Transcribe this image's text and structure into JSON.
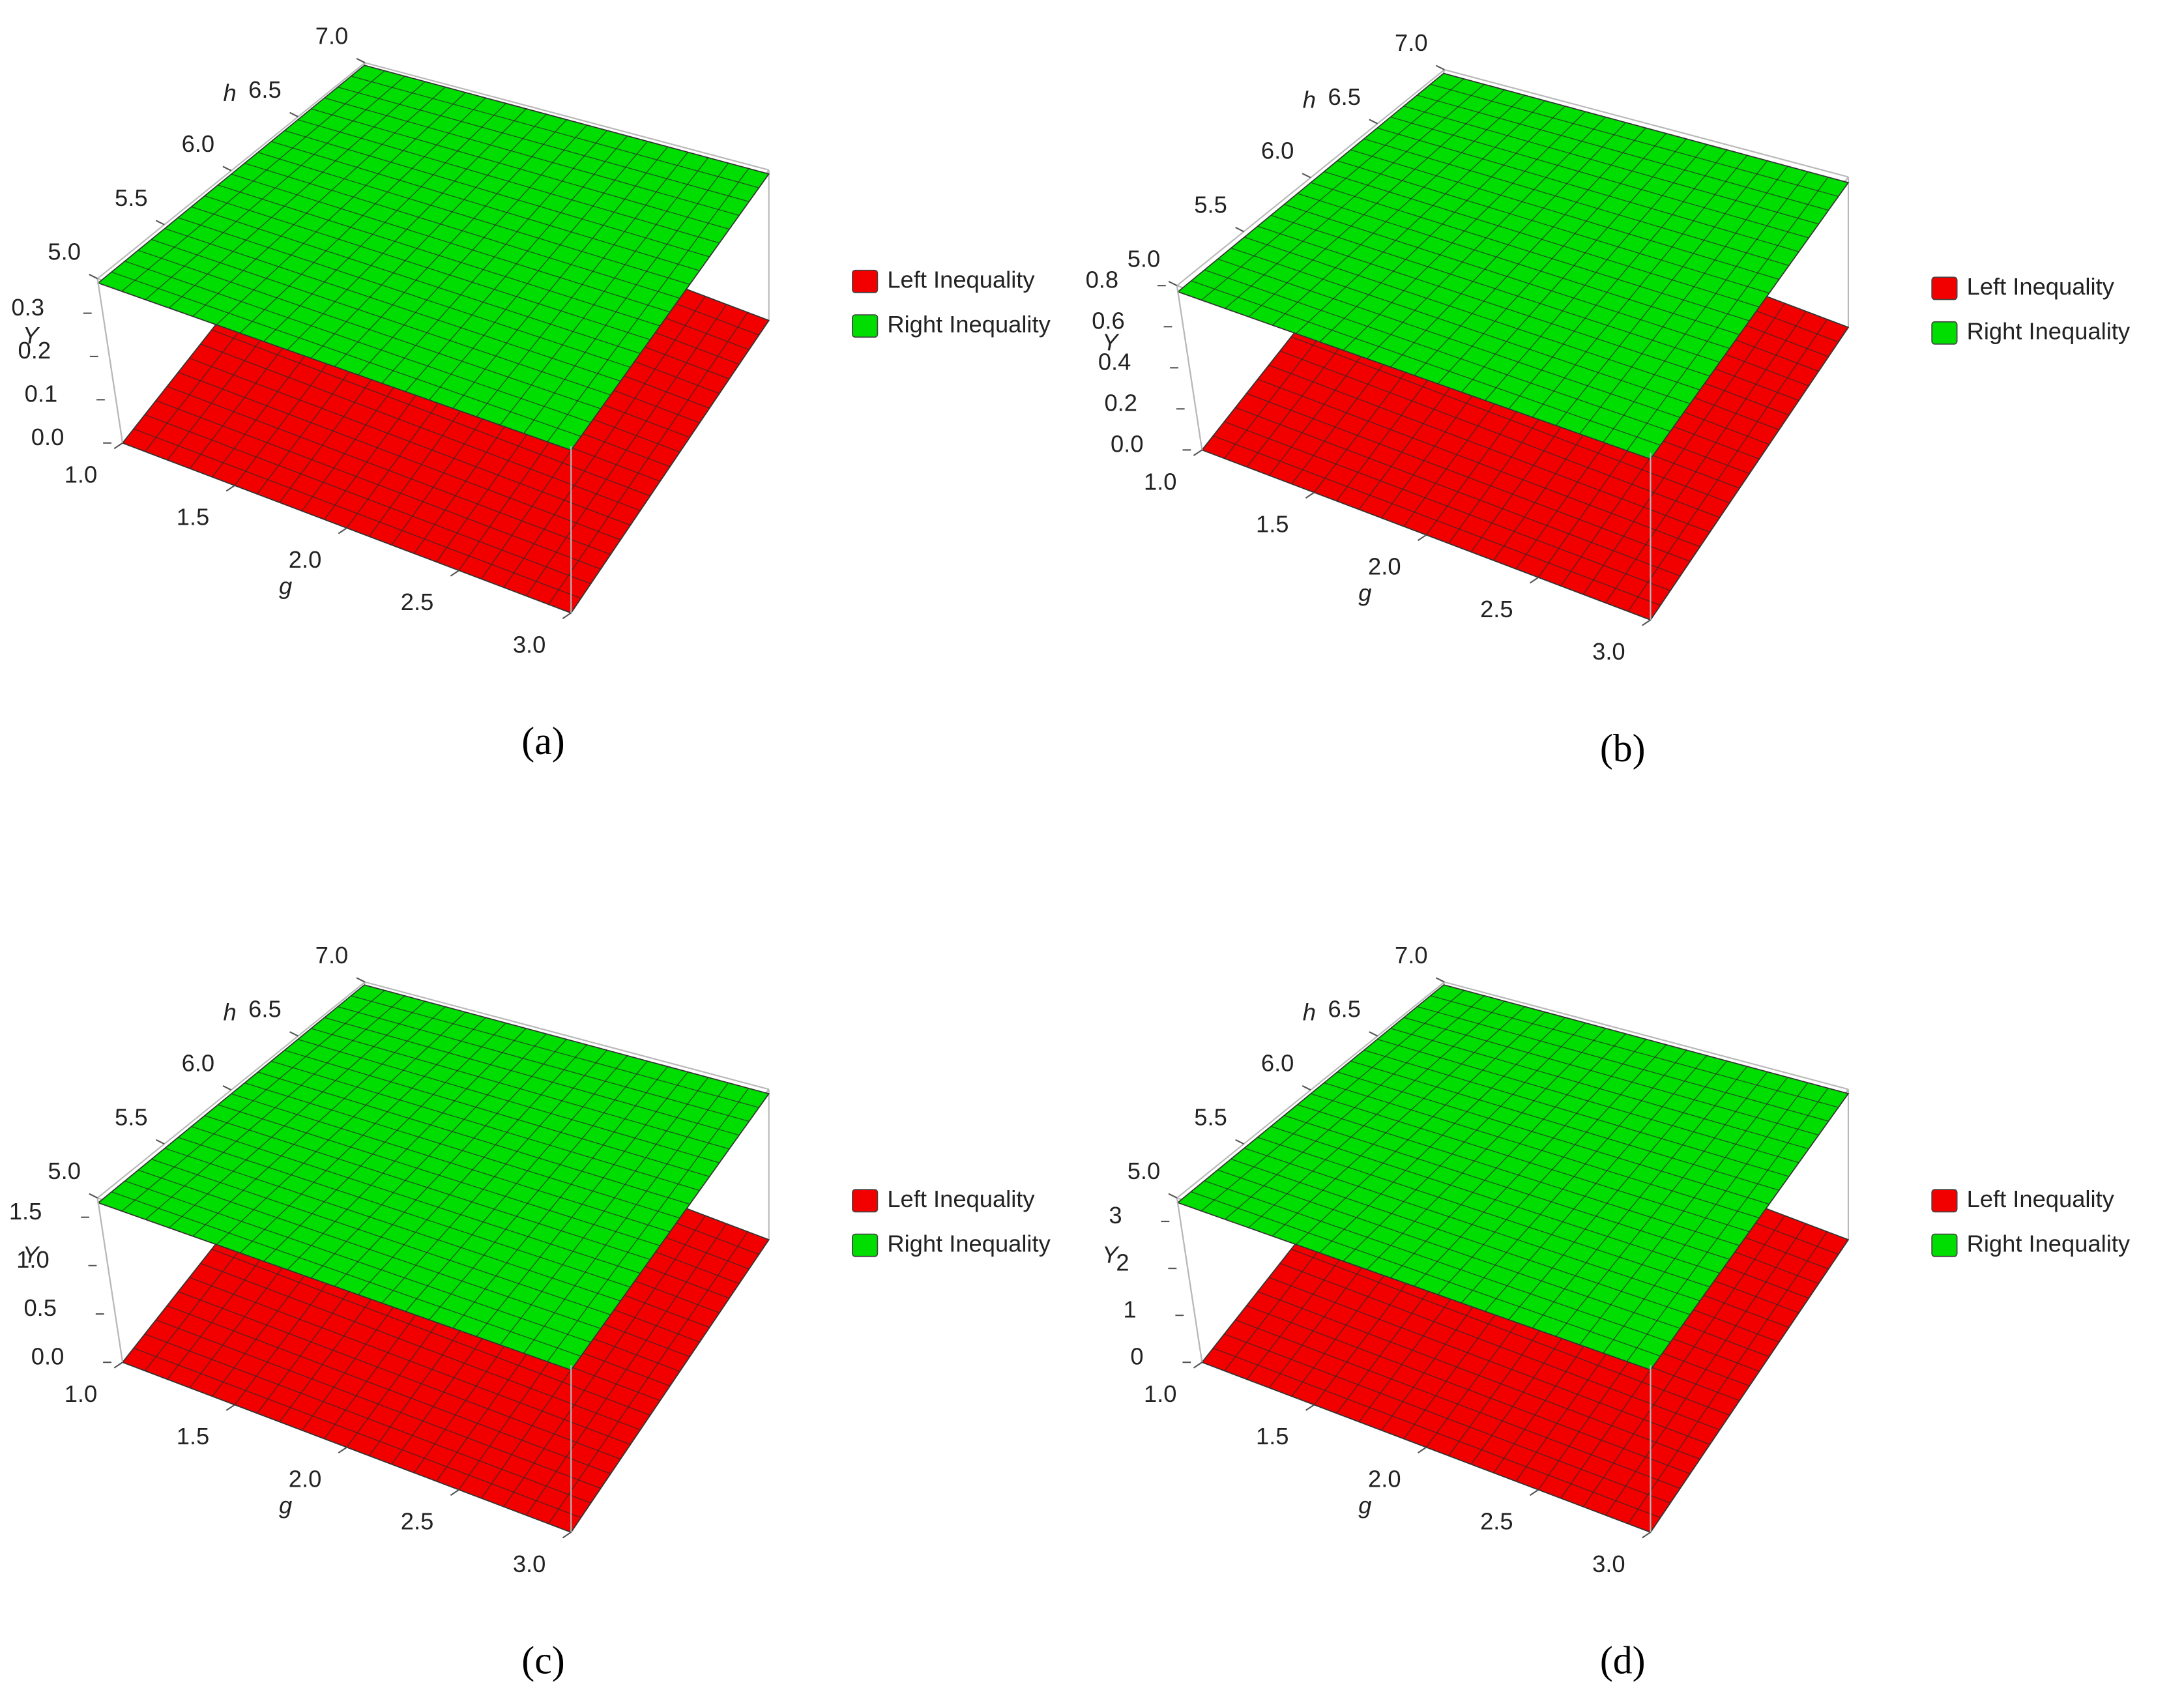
{
  "chart_data": [
    {
      "type": "surface3d",
      "caption": "(a)",
      "xlabel": "g",
      "ylabel": "h",
      "zlabel": "Y",
      "xlim": [
        1,
        3
      ],
      "xticks": [
        {
          "value": 1,
          "label": "1.0"
        },
        {
          "value": 1.5,
          "label": "1.5"
        },
        {
          "value": 2,
          "label": "2.0"
        },
        {
          "value": 2.5,
          "label": "2.5"
        },
        {
          "value": 3,
          "label": "3.0"
        }
      ],
      "ylim": [
        5,
        7
      ],
      "yticks": [
        {
          "value": 5,
          "label": "5.0"
        },
        5.5,
        {
          "value": 6,
          "label": "6.0"
        },
        6.5,
        {
          "value": 7,
          "label": "7.0"
        }
      ],
      "zlim": [
        0,
        0.38
      ],
      "zticks": [
        {
          "value": 0,
          "label": "0.0"
        },
        0.1,
        0.2,
        0.3
      ],
      "legend": "right",
      "series": [
        {
          "name": "Left Inequality",
          "color": "#f20000",
          "values": [
            0
          ]
        },
        {
          "name": "Right Inequality",
          "color": "#00dd00",
          "values": [
            0.37
          ]
        }
      ]
    },
    {
      "type": "surface3d",
      "caption": "(b)",
      "xlabel": "g",
      "ylabel": "h",
      "zlabel": "Y",
      "xlim": [
        1,
        3
      ],
      "xticks": [
        {
          "value": 1,
          "label": "1.0"
        },
        {
          "value": 1.5,
          "label": "1.5"
        },
        {
          "value": 2,
          "label": "2.0"
        },
        {
          "value": 2.5,
          "label": "2.5"
        },
        {
          "value": 3,
          "label": "3.0"
        }
      ],
      "ylim": [
        5,
        7
      ],
      "yticks": [
        {
          "value": 5,
          "label": "5.0"
        },
        5.5,
        {
          "value": 6,
          "label": "6.0"
        },
        6.5,
        {
          "value": 7,
          "label": "7.0"
        }
      ],
      "zlim": [
        0,
        0.8
      ],
      "zticks": [
        {
          "value": 0,
          "label": "0.0"
        },
        0.2,
        0.4,
        0.6,
        0.8
      ],
      "legend": "right",
      "series": [
        {
          "name": "Left Inequality",
          "color": "#f20000",
          "values": [
            0
          ]
        },
        {
          "name": "Right Inequality",
          "color": "#00dd00",
          "values": [
            0.77
          ]
        }
      ]
    },
    {
      "type": "surface3d",
      "caption": "(c)",
      "xlabel": "g",
      "ylabel": "h",
      "zlabel": "Y",
      "xlim": [
        1,
        3
      ],
      "xticks": [
        {
          "value": 1,
          "label": "1.0"
        },
        {
          "value": 1.5,
          "label": "1.5"
        },
        {
          "value": 2,
          "label": "2.0"
        },
        {
          "value": 2.5,
          "label": "2.5"
        },
        {
          "value": 3,
          "label": "3.0"
        }
      ],
      "ylim": [
        5,
        7
      ],
      "yticks": [
        {
          "value": 5,
          "label": "5.0"
        },
        5.5,
        {
          "value": 6,
          "label": "6.0"
        },
        6.5,
        {
          "value": 7,
          "label": "7.0"
        }
      ],
      "zlim": [
        0,
        1.7
      ],
      "zticks": [
        {
          "value": 0,
          "label": "0.0"
        },
        0.5,
        {
          "value": 1,
          "label": "1.0"
        },
        1.5
      ],
      "legend": "right",
      "series": [
        {
          "name": "Left Inequality",
          "color": "#f20000",
          "values": [
            0
          ]
        },
        {
          "name": "Right Inequality",
          "color": "#00dd00",
          "values": [
            1.65
          ]
        }
      ]
    },
    {
      "type": "surface3d",
      "caption": "(d)",
      "xlabel": "g",
      "ylabel": "h",
      "zlabel": "Y",
      "xlim": [
        1,
        3
      ],
      "xticks": [
        {
          "value": 1,
          "label": "1.0"
        },
        {
          "value": 1.5,
          "label": "1.5"
        },
        {
          "value": 2,
          "label": "2.0"
        },
        {
          "value": 2.5,
          "label": "2.5"
        },
        {
          "value": 3,
          "label": "3.0"
        }
      ],
      "ylim": [
        5,
        7
      ],
      "yticks": [
        {
          "value": 5,
          "label": "5.0"
        },
        5.5,
        {
          "value": 6,
          "label": "6.0"
        },
        6.5,
        {
          "value": 7,
          "label": "7.0"
        }
      ],
      "zlim": [
        0,
        3.5
      ],
      "zticks": [
        0,
        1,
        2,
        3
      ],
      "legend": "right",
      "series": [
        {
          "name": "Left Inequality",
          "color": "#f20000",
          "values": [
            0
          ]
        },
        {
          "name": "Right Inequality",
          "color": "#00dd00",
          "values": [
            3.4
          ]
        }
      ]
    }
  ]
}
